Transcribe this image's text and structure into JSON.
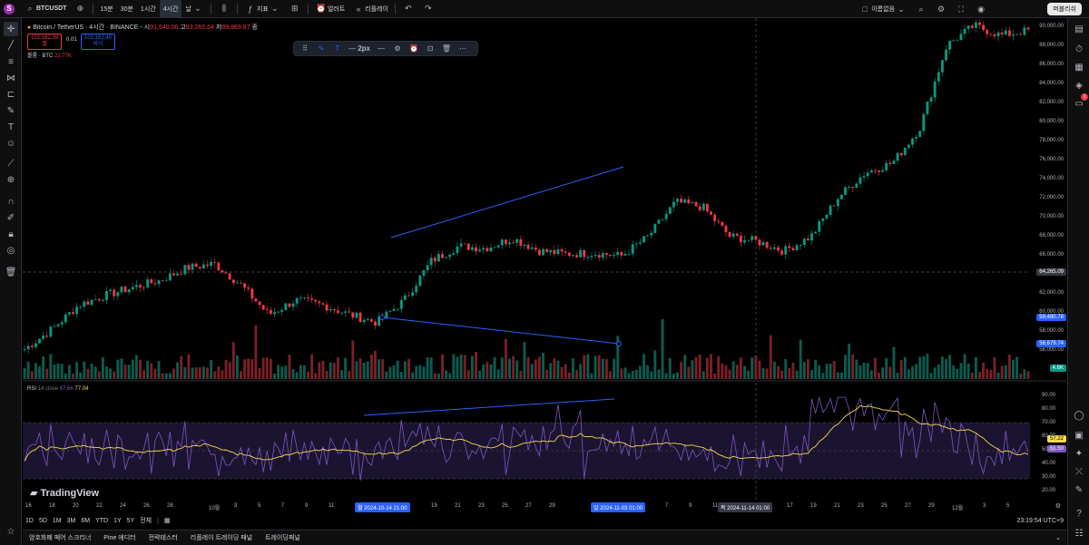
{
  "topbar": {
    "logo": "S",
    "symbol": "BTCUSDT",
    "timeframes": [
      "15분",
      "30분",
      "1시간",
      "4시간",
      "날"
    ],
    "active_timeframe": "4시간",
    "indicators_label": "지표",
    "alert_label": "얼러트",
    "replay_label": "리플레이",
    "layout_label": "이름없음",
    "publish_label": "퍼블리쉬"
  },
  "legend": {
    "title": "Bitcoin / TetherUS · 4시간 · BINANCE",
    "open_label": "시",
    "open": "91,540.00",
    "high_label": "고",
    "high": "93,265.64",
    "low_label": "저",
    "low": "89,969.87",
    "close_label": "종",
    "sell_price": "102,162.39",
    "sell_label": "셸",
    "spread": "0.01",
    "buy_price": "102,162.40",
    "buy_label": "바이",
    "volume_label": "볼륨 · BTC",
    "volume_value": "22.77K"
  },
  "rsi": {
    "label": "RSI",
    "params": "14 close",
    "value1": "67.66",
    "value2": "77.04",
    "cur1": "57.22",
    "cur2": "51.50"
  },
  "watermark": "TradingView",
  "draw_toolbar": {
    "width_label": "2px"
  },
  "price_axis": {
    "ticks": [
      "90,000.00",
      "88,000.00",
      "86,000.00",
      "84,000.00",
      "82,000.00",
      "80,000.00",
      "78,000.00",
      "76,000.00",
      "74,000.00",
      "72,000.00",
      "70,000.00",
      "68,000.00",
      "66,000.00",
      "62,000.00",
      "60,000.00",
      "58,000.00",
      "56,000.00"
    ],
    "crosshair_price": "64,265.09",
    "tag1": "59,490.78",
    "tag2": "56,679.74",
    "vol_tag": "4.6K",
    "rsi_ticks": [
      "90.00",
      "80.00",
      "70.00",
      "60.00",
      "50.00",
      "40.00",
      "30.00",
      "20.00"
    ]
  },
  "time_axis": {
    "ticks": [
      "16",
      "18",
      "20",
      "22",
      "24",
      "26",
      "28",
      "10월",
      "3",
      "5",
      "7",
      "9",
      "11",
      "19",
      "21",
      "23",
      "25",
      "27",
      "29",
      "7",
      "9",
      "11",
      "17",
      "19",
      "21",
      "23",
      "25",
      "27",
      "29",
      "12월",
      "3",
      "5"
    ],
    "tag_start": "월 2024-10-14  21:00",
    "tag_end": "일 2024-11-03  01:00",
    "tag_cursor": "목 2024-11-14  01:00"
  },
  "bottom": {
    "ranges": [
      "1D",
      "5D",
      "1M",
      "3M",
      "6M",
      "YTD",
      "1Y",
      "5Y",
      "전체"
    ],
    "clock": "23:19:54 UTC+9"
  },
  "footer": {
    "tabs": [
      "암호화폐 페어 스크리너",
      "Pine 에디터",
      "전략테스터",
      "리플레이 트레이딩 패널",
      "트레이딩패널"
    ]
  },
  "chart_data": {
    "type": "candlestick",
    "symbol": "BTCUSDT",
    "ylim": [
      55000,
      92000
    ],
    "closes_approx": [
      57500,
      59500,
      62000,
      63000,
      63800,
      64500,
      65800,
      66200,
      64000,
      61000,
      62500,
      62000,
      61000,
      60200,
      62500,
      66500,
      68000,
      67800,
      68800,
      67500,
      67200,
      67300,
      67000,
      69000,
      72500,
      72000,
      69000,
      68500,
      67500,
      69000,
      73000,
      75500,
      76500,
      80000,
      88500,
      90500,
      89500,
      90000
    ]
  }
}
